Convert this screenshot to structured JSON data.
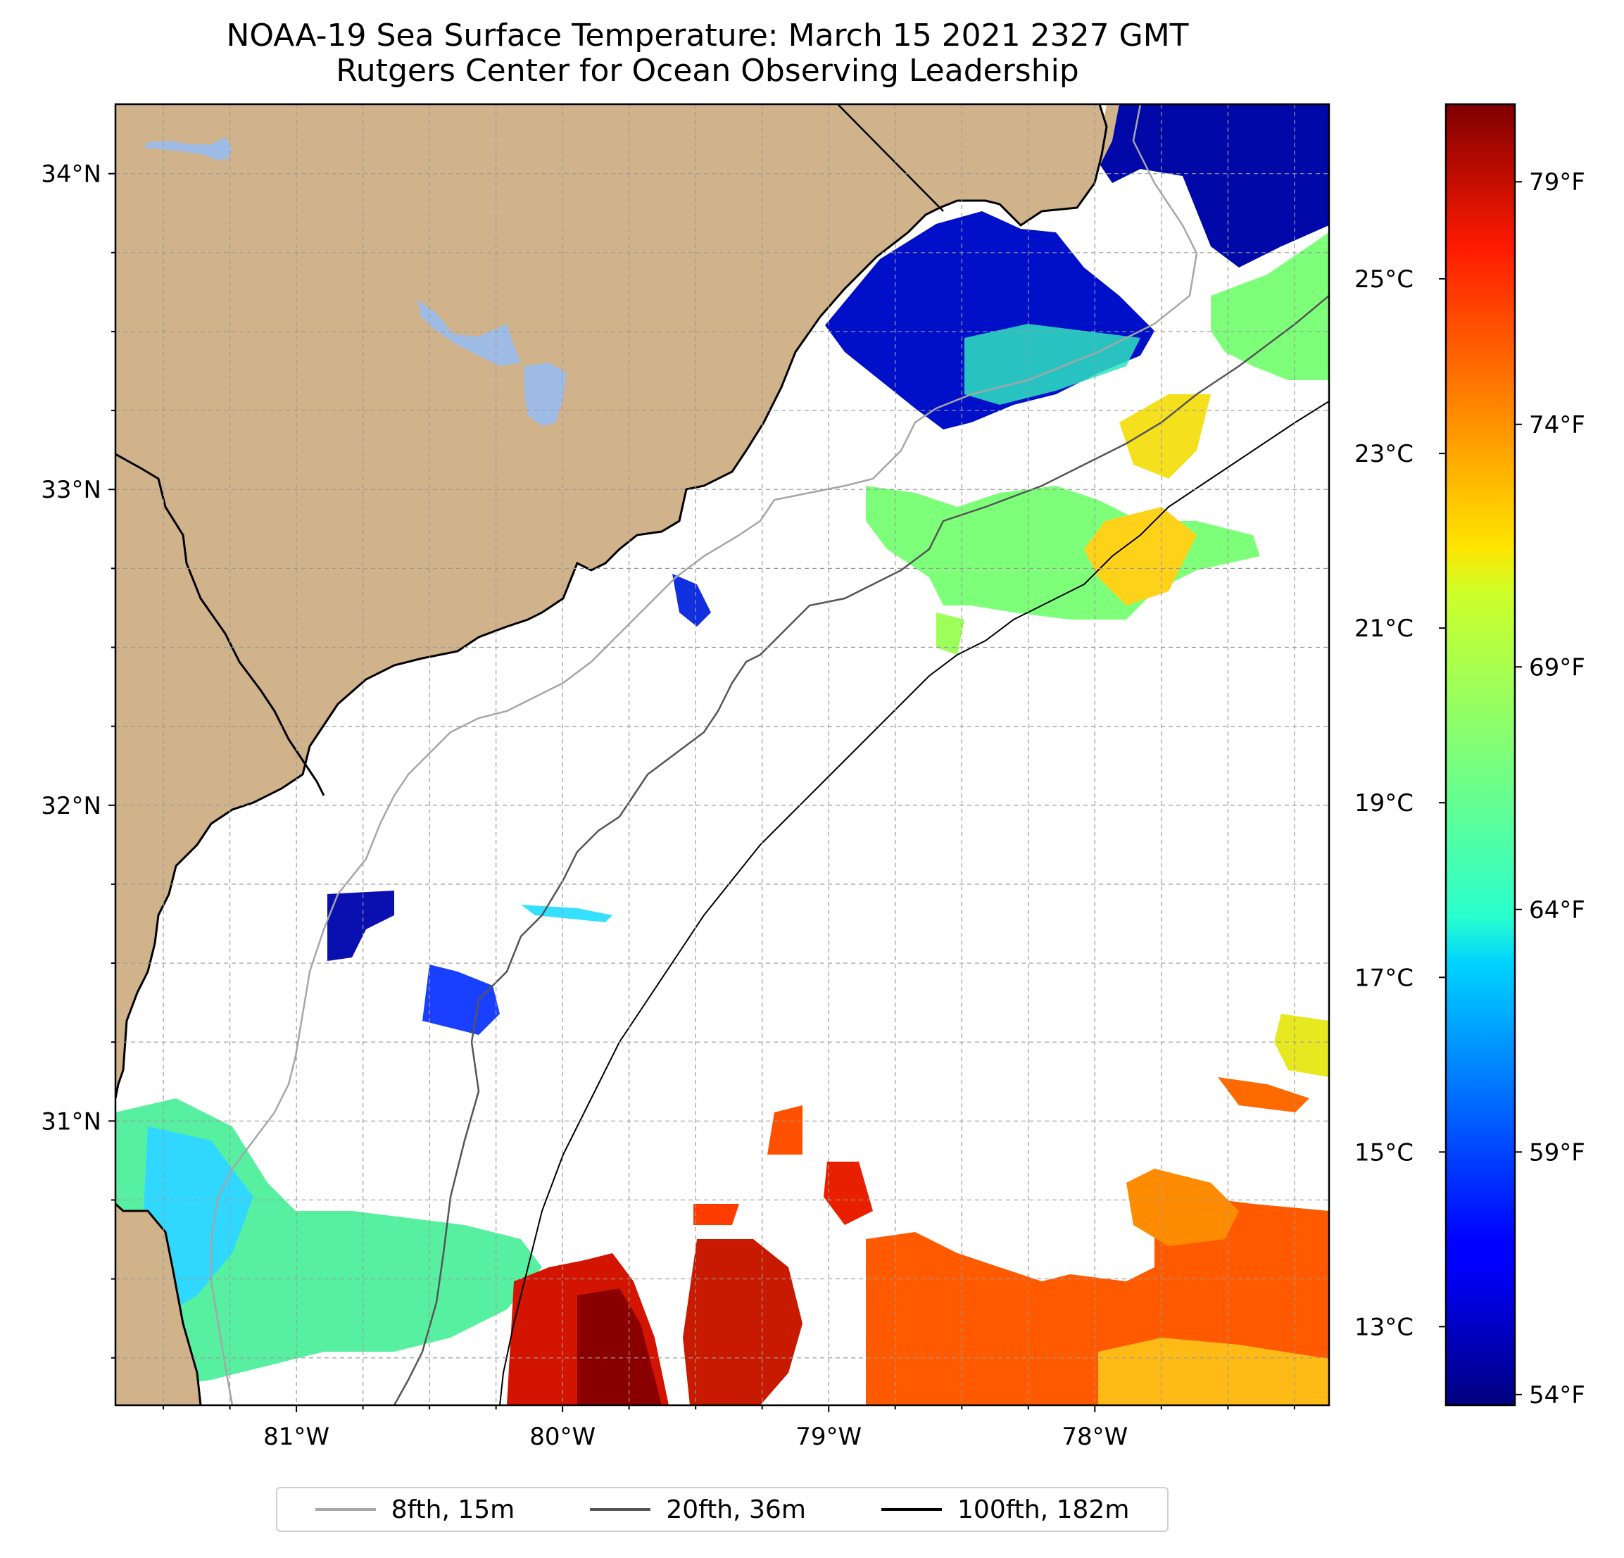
{
  "title": {
    "line1": "NOAA-19 Sea Surface Temperature: March 15 2021 2327 GMT",
    "line2": "Rutgers Center for Ocean Observing Leadership"
  },
  "map": {
    "lat_range": [
      30.1,
      34.22
    ],
    "lon_range": [
      -81.68,
      -77.12
    ],
    "lat_ticks": [
      {
        "value": 34,
        "label": "34°N"
      },
      {
        "value": 33,
        "label": "33°N"
      },
      {
        "value": 32,
        "label": "32°N"
      },
      {
        "value": 31,
        "label": "31°N"
      }
    ],
    "lon_ticks": [
      {
        "value": -81,
        "label": "81°W"
      },
      {
        "value": -80,
        "label": "80°W"
      },
      {
        "value": -79,
        "label": "79°W"
      },
      {
        "value": -78,
        "label": "78°W"
      }
    ],
    "gridlines": "dashed every 0.25°",
    "land_color": "#d0b28b",
    "lake_color": "#9fbce6"
  },
  "colorbar": {
    "colormap": "jet",
    "range_celsius": [
      12.1,
      27.0
    ],
    "celsius_ticks": [
      {
        "value": 13,
        "label": "13°C"
      },
      {
        "value": 15,
        "label": "15°C"
      },
      {
        "value": 17,
        "label": "17°C"
      },
      {
        "value": 19,
        "label": "19°C"
      },
      {
        "value": 21,
        "label": "21°C"
      },
      {
        "value": 23,
        "label": "23°C"
      },
      {
        "value": 25,
        "label": "25°C"
      }
    ],
    "fahrenheit_ticks": [
      {
        "value": 54,
        "label": "54°F"
      },
      {
        "value": 59,
        "label": "59°F"
      },
      {
        "value": 64,
        "label": "64°F"
      },
      {
        "value": 69,
        "label": "69°F"
      },
      {
        "value": 74,
        "label": "74°F"
      },
      {
        "value": 79,
        "label": "79°F"
      }
    ]
  },
  "legend": [
    {
      "label": "8fth, 15m",
      "color": "#a6a6a6"
    },
    {
      "label": "20fth, 36m",
      "color": "#555555"
    },
    {
      "label": "100fth, 182m",
      "color": "#000000"
    }
  ]
}
